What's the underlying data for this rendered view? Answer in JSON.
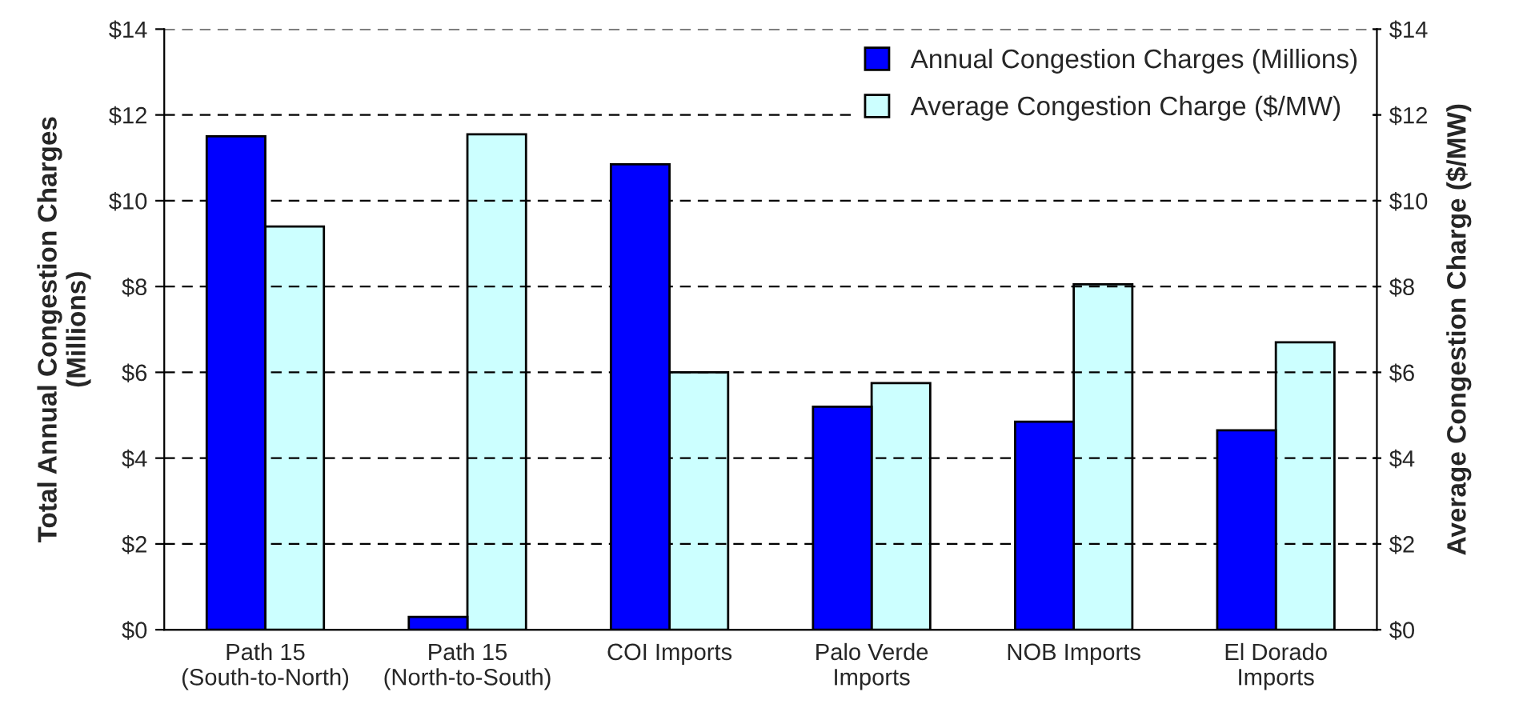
{
  "chart_data": {
    "type": "bar",
    "categories": [
      "Path 15\n(South-to-North)",
      "Path 15\n(North-to-South)",
      "COI Imports",
      "Palo Verde\nImports",
      "NOB Imports",
      "El Dorado\nImports"
    ],
    "series": [
      {
        "name": "Annual Congestion Charges (Millions)",
        "color": "#0000ff",
        "values": [
          11.5,
          0.3,
          10.85,
          5.2,
          4.85,
          4.65
        ]
      },
      {
        "name": "Average Congestion Charge ($/MW)",
        "color": "#ccffff",
        "axis": "y2",
        "values": [
          9.4,
          11.55,
          6.0,
          5.75,
          8.05,
          6.7
        ]
      }
    ],
    "ylabel": "Total Annual Congestion Charges\n(Millions)",
    "y2label": "Average Congestion Charge ($/MW)",
    "ylim": [
      0,
      14
    ],
    "yticks": [
      {
        "value": 0,
        "label": "$0"
      },
      {
        "value": 2,
        "label": "$2"
      },
      {
        "value": 4,
        "label": "$4"
      },
      {
        "value": 6,
        "label": "$6"
      },
      {
        "value": 8,
        "label": "$8"
      },
      {
        "value": 10,
        "label": "$10"
      },
      {
        "value": 12,
        "label": "$12"
      },
      {
        "value": 14,
        "label": "$14"
      }
    ],
    "y2lim": [
      0,
      14
    ],
    "y2ticks": [
      {
        "value": 0,
        "label": "$0"
      },
      {
        "value": 2,
        "label": "$2"
      },
      {
        "value": 4,
        "label": "$4"
      },
      {
        "value": 6,
        "label": "$6"
      },
      {
        "value": 8,
        "label": "$8"
      },
      {
        "value": 10,
        "label": "$10"
      },
      {
        "value": 12,
        "label": "$12"
      },
      {
        "value": 14,
        "label": "$14"
      }
    ],
    "grid": "y",
    "legend": "top right",
    "line_style": "dashed"
  }
}
